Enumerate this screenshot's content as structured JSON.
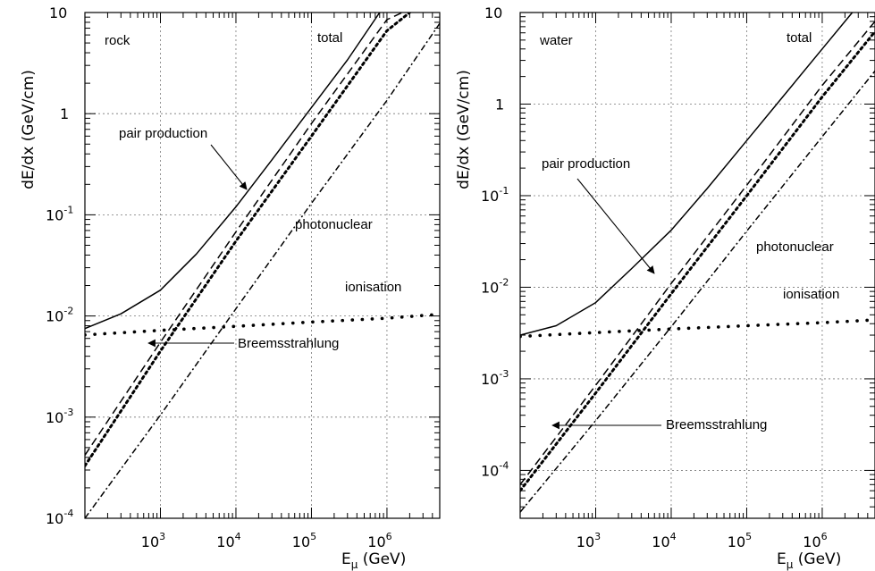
{
  "chart_data": [
    {
      "type": "line",
      "medium_label": "rock",
      "xlabel_main": "E",
      "xlabel_sub": "μ",
      "xlabel_unit": " (GeV)",
      "ylabel": "dE/dx (GeV/cm)",
      "xscale": "log",
      "yscale": "log",
      "xlim": [
        100,
        5000000
      ],
      "ylim": [
        0.0001,
        10
      ],
      "x_ticks": [
        {
          "value": 1000,
          "base": "10",
          "exp": "3"
        },
        {
          "value": 10000,
          "base": "10",
          "exp": "4"
        },
        {
          "value": 100000,
          "base": "10",
          "exp": "5"
        },
        {
          "value": 1000000,
          "base": "10",
          "exp": "6"
        }
      ],
      "y_ticks": [
        {
          "value": 10,
          "base": "10",
          "exp": ""
        },
        {
          "value": 1,
          "base": "1",
          "exp": ""
        },
        {
          "value": 0.1,
          "base": "10",
          "exp": "-1"
        },
        {
          "value": 0.01,
          "base": "10",
          "exp": "-2"
        },
        {
          "value": 0.001,
          "base": "10",
          "exp": "-3"
        },
        {
          "value": 0.0001,
          "base": "10",
          "exp": "-4"
        }
      ],
      "grid": true,
      "series": [
        {
          "name": "total",
          "style": "solid",
          "x": [
            100,
            300,
            1000,
            3000,
            10000,
            30000,
            100000,
            300000,
            800000
          ],
          "y": [
            0.0075,
            0.0105,
            0.018,
            0.041,
            0.12,
            0.35,
            1.15,
            3.4,
            10
          ]
        },
        {
          "name": "pair production",
          "style": "dotted",
          "x": [
            100,
            1000,
            10000,
            100000,
            1000000,
            2000000
          ],
          "y": [
            0.00033,
            0.0045,
            0.055,
            0.6,
            6.6,
            10
          ]
        },
        {
          "name": "Breemsstrahlung",
          "style": "dashed",
          "x": [
            100,
            1000,
            10000,
            100000,
            1000000,
            1600000
          ],
          "y": [
            0.00042,
            0.0055,
            0.068,
            0.8,
            8.5,
            10
          ]
        },
        {
          "name": "photonuclear",
          "style": "dashdot",
          "x": [
            100,
            1000,
            10000,
            100000,
            1000000,
            5000000
          ],
          "y": [
            0.0001,
            0.00105,
            0.0118,
            0.13,
            1.35,
            7.8
          ]
        },
        {
          "name": "ionisation",
          "style": "dots",
          "x": [
            100,
            1000,
            10000,
            100000,
            1000000,
            5000000
          ],
          "y": [
            0.0065,
            0.0072,
            0.0079,
            0.0087,
            0.0095,
            0.0104
          ]
        }
      ],
      "annotations": [
        {
          "text": "total"
        },
        {
          "text": "pair production"
        },
        {
          "text": "photonuclear"
        },
        {
          "text": "ionisation"
        },
        {
          "text": "Breemsstrahlung"
        }
      ]
    },
    {
      "type": "line",
      "medium_label": "water",
      "xlabel_main": "E",
      "xlabel_sub": "μ",
      "xlabel_unit": " (GeV)",
      "ylabel": "dE/dx (GeV/cm)",
      "xscale": "log",
      "yscale": "log",
      "xlim": [
        100,
        5000000
      ],
      "ylim": [
        3e-05,
        10
      ],
      "x_ticks": [
        {
          "value": 1000,
          "base": "10",
          "exp": "3"
        },
        {
          "value": 10000,
          "base": "10",
          "exp": "4"
        },
        {
          "value": 100000,
          "base": "10",
          "exp": "5"
        },
        {
          "value": 1000000,
          "base": "10",
          "exp": "6"
        }
      ],
      "y_ticks": [
        {
          "value": 10,
          "base": "10",
          "exp": ""
        },
        {
          "value": 1,
          "base": "1",
          "exp": ""
        },
        {
          "value": 0.1,
          "base": "10",
          "exp": "-1"
        },
        {
          "value": 0.01,
          "base": "10",
          "exp": "-2"
        },
        {
          "value": 0.001,
          "base": "10",
          "exp": "-3"
        },
        {
          "value": 0.0001,
          "base": "10",
          "exp": "-4"
        }
      ],
      "grid": true,
      "series": [
        {
          "name": "total",
          "style": "solid",
          "x": [
            100,
            300,
            1000,
            3000,
            10000,
            30000,
            100000,
            300000,
            1000000,
            2500000
          ],
          "y": [
            0.003,
            0.0038,
            0.0068,
            0.016,
            0.042,
            0.12,
            0.4,
            1.2,
            4,
            10
          ]
        },
        {
          "name": "pair production",
          "style": "dotted",
          "x": [
            100,
            1000,
            10000,
            100000,
            1000000,
            5000000
          ],
          "y": [
            6e-05,
            0.0007,
            0.0085,
            0.1,
            1.2,
            6.2
          ]
        },
        {
          "name": "Breemsstrahlung",
          "style": "dashed",
          "x": [
            100,
            1000,
            10000,
            100000,
            1000000,
            5000000
          ],
          "y": [
            7e-05,
            0.00085,
            0.011,
            0.13,
            1.6,
            8
          ]
        },
        {
          "name": "photonuclear",
          "style": "dashdot",
          "x": [
            100,
            1000,
            10000,
            100000,
            1000000,
            5000000
          ],
          "y": [
            3.5e-05,
            0.00035,
            0.0037,
            0.041,
            0.44,
            2.3
          ]
        },
        {
          "name": "ionisation",
          "style": "dots",
          "x": [
            100,
            1000,
            10000,
            100000,
            1000000,
            5000000
          ],
          "y": [
            0.0029,
            0.0032,
            0.0035,
            0.0038,
            0.0041,
            0.0044
          ]
        }
      ],
      "annotations": [
        {
          "text": "total"
        },
        {
          "text": "pair production"
        },
        {
          "text": "photonuclear"
        },
        {
          "text": "ionisation"
        },
        {
          "text": "Breemsstrahlung"
        }
      ]
    }
  ]
}
